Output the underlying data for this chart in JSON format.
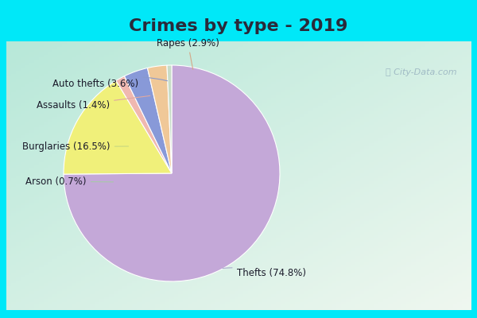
{
  "title": "Crimes by type - 2019",
  "labels": [
    "Thefts",
    "Burglaries",
    "Assaults",
    "Auto thefts",
    "Rapes",
    "Arson"
  ],
  "pct_labels": [
    "Thefts (74.8%)",
    "Burglaries (16.5%)",
    "Assaults (1.4%)",
    "Auto thefts (3.6%)",
    "Rapes (2.9%)",
    "Arson (0.7%)"
  ],
  "values": [
    74.8,
    16.5,
    1.4,
    3.6,
    2.9,
    0.7
  ],
  "colors": [
    "#c4a8d8",
    "#f0f07a",
    "#f0b8b0",
    "#8899d8",
    "#f0c898",
    "#c8dcc8"
  ],
  "title_bg": "#00e8f8",
  "title_color": "#2a2a3a",
  "title_fontsize": 16,
  "label_fontsize": 8.5,
  "startangle": 90,
  "watermark": "ⓘ City-Data.com",
  "border_color": "#00e8f8",
  "border_thickness": 8
}
